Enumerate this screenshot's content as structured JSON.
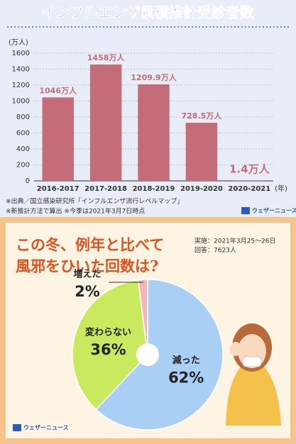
{
  "chart_data": [
    {
      "type": "bar",
      "title": "インフルエンザ累積推計受診者数",
      "y_label": "(万人)",
      "x_label": "(年)",
      "categories": [
        "2016-2017",
        "2017-2018",
        "2018-2019",
        "2019-2020",
        "2020-2021"
      ],
      "values": [
        1046,
        1458,
        1209.9,
        728.5,
        1.4
      ],
      "value_labels": [
        "1046万人",
        "1458万人",
        "1209.9万人",
        "728.5万人",
        "1.4万人"
      ],
      "color": "#c46d78",
      "ylim": [
        0,
        1600
      ],
      "yticks": [
        0,
        200,
        400,
        600,
        800,
        1000,
        1200,
        1400,
        1600
      ],
      "grid": true,
      "notes": [
        "※出典／国立感染研究所「インフルエンザ流行レベルマップ」",
        "※新推計方法で算出 ※今季は2021年3月7日時点"
      ],
      "brand": "ウェザーニュース"
    },
    {
      "type": "pie",
      "title_lines": [
        "この冬、例年と比べて",
        "風邪をひいた回数は?"
      ],
      "info": [
        "実施：2021年3月25～26日",
        "回答：7623人"
      ],
      "categories": [
        "減った",
        "変わらない",
        "増えた"
      ],
      "values": [
        62,
        36,
        2
      ],
      "value_labels": [
        "62%",
        "36%",
        "2%"
      ],
      "colors": [
        "#a9cff4",
        "#c9ea5f",
        "#f4b6b6"
      ],
      "brand": "ウェザーニュース"
    }
  ]
}
